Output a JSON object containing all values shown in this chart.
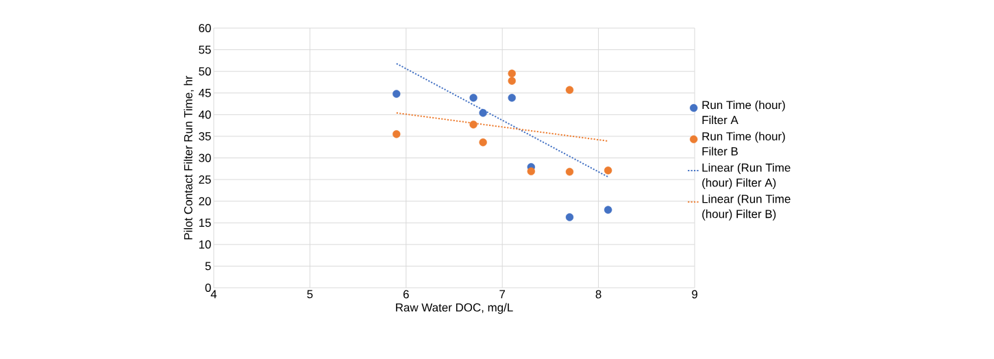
{
  "chart_data": {
    "type": "scatter",
    "xlabel": "Raw Water DOC, mg/L",
    "ylabel": "Pilot Contact Filter Run Time, hr",
    "xlim": [
      4,
      9
    ],
    "xticks": [
      4,
      5,
      6,
      7,
      8,
      9
    ],
    "ylim": [
      0,
      60
    ],
    "yticks": [
      0,
      5,
      10,
      15,
      20,
      25,
      30,
      35,
      40,
      45,
      50,
      55,
      60
    ],
    "grid": true,
    "legend": "right",
    "marker": "circle",
    "series": [
      {
        "name": "Run Time (hour) Filter A",
        "color": "#4472c4",
        "x": [
          5.9,
          6.7,
          6.8,
          7.1,
          7.3,
          7.7,
          8.1
        ],
        "values": [
          44.8,
          43.9,
          40.4,
          43.9,
          27.9,
          16.3,
          18.0
        ]
      },
      {
        "name": "Run Time (hour) Filter B",
        "color": "#ed7d31",
        "x": [
          5.9,
          6.7,
          6.8,
          7.1,
          7.1,
          7.7,
          7.3,
          7.7,
          8.1
        ],
        "values": [
          35.5,
          37.7,
          33.6,
          49.5,
          47.8,
          45.7,
          26.9,
          26.8,
          27.1
        ]
      },
      {
        "name": "Linear (Run Time (hour) Filter A)",
        "type": "line",
        "line_style": "dotted",
        "marker": "none",
        "color": "#4472c4",
        "x": [
          5.9,
          8.1
        ],
        "values": [
          51.8,
          25.6
        ]
      },
      {
        "name": "Linear (Run Time (hour) Filter B)",
        "type": "line",
        "line_style": "dotted",
        "marker": "none",
        "color": "#ed7d31",
        "x": [
          5.9,
          8.1
        ],
        "values": [
          40.4,
          33.9
        ]
      }
    ]
  }
}
